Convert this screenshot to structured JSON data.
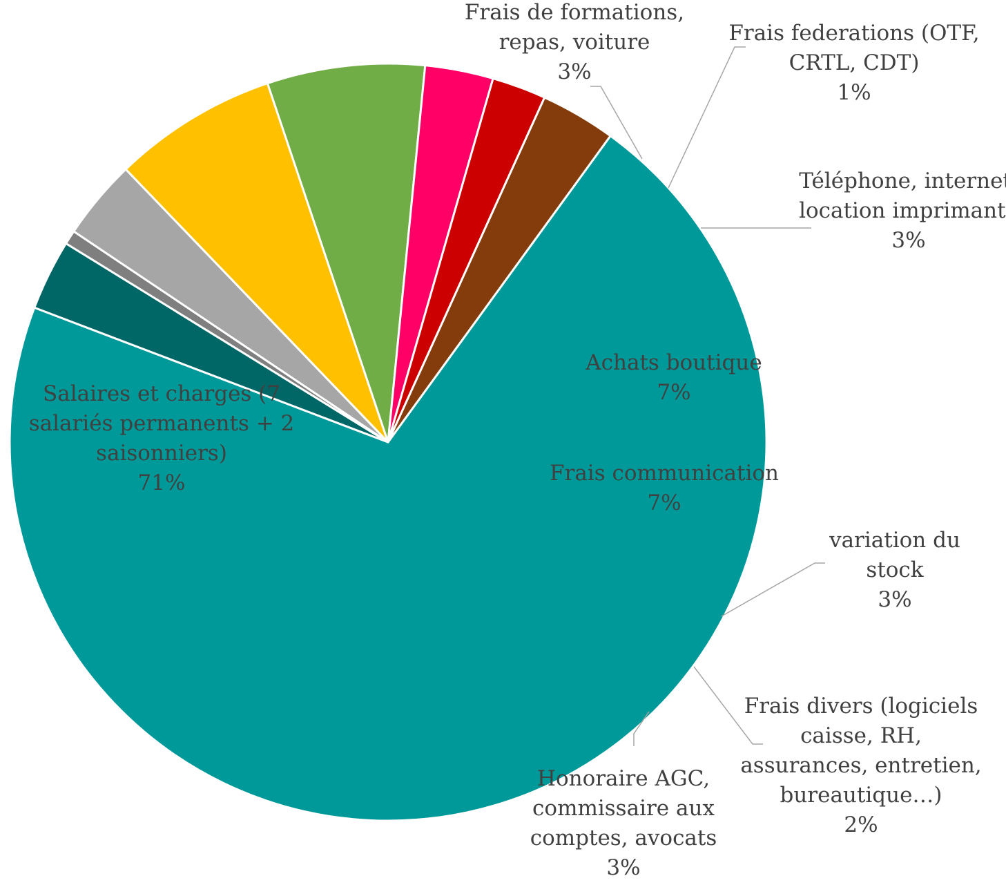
{
  "chart_data": {
    "type": "pie",
    "title": "",
    "slices": [
      {
        "name": "Salaires et charges (7 salariés permanents + 2 saisonniers)",
        "label_lines": [
          "Salaires et charges (7",
          "salariés permanents + 2",
          "saisonniers)"
        ],
        "pct_label": "71%",
        "value": 70.5,
        "color": "#009999"
      },
      {
        "name": "Frais de formations, repas, voiture",
        "label_lines": [
          "Frais de formations,",
          "repas, voiture"
        ],
        "pct_label": "3%",
        "value": 3.0,
        "color": "#006666"
      },
      {
        "name": "Frais federations (OTF, CRTL, CDT)",
        "label_lines": [
          "Frais federations (OTF,",
          "CRTL, CDT)"
        ],
        "pct_label": "1%",
        "value": 0.6,
        "color": "#7f7f7f"
      },
      {
        "name": "Téléphone, internet, location imprimante",
        "label_lines": [
          "Téléphone, internet,",
          "location imprimante"
        ],
        "pct_label": "3%",
        "value": 3.4,
        "color": "#a6a6a6"
      },
      {
        "name": "Achats boutique",
        "label_lines": [
          "Achats boutique"
        ],
        "pct_label": "7%",
        "value": 7.0,
        "color": "#ffc000"
      },
      {
        "name": "Frais communication",
        "label_lines": [
          "Frais communication"
        ],
        "pct_label": "7%",
        "value": 6.7,
        "color": "#70ad47"
      },
      {
        "name": "variation du stock",
        "label_lines": [
          "variation du",
          "stock"
        ],
        "pct_label": "3%",
        "value": 2.9,
        "color": "#ff0066"
      },
      {
        "name": "Frais divers (logiciels caisse, RH, assurances, entretien, bureautique…)",
        "label_lines": [
          "Frais divers (logiciels",
          "caisse, RH,",
          "assurances, entretien,",
          "bureautique…)"
        ],
        "pct_label": "2%",
        "value": 2.3,
        "color": "#cc0000"
      },
      {
        "name": "Honoraire AGC, commissaire aux comptes, avocats",
        "label_lines": [
          "Honoraire AGC,",
          "commissaire aux",
          "comptes, avocats"
        ],
        "pct_label": "3%",
        "value": 3.2,
        "color": "#843c0c"
      }
    ],
    "legend": "none",
    "start_angle_deg": 36
  }
}
